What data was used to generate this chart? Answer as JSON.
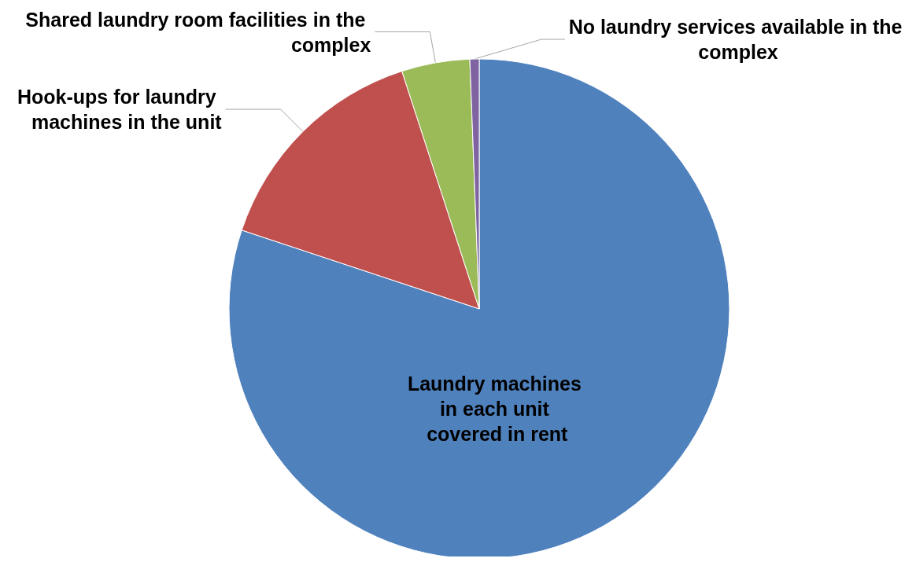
{
  "chart_data": {
    "type": "pie",
    "categories": [
      "Laundry machines in each unit covered in rent",
      "Hook-ups for laundry machines in the unit",
      "Shared laundry room facilities in the complex",
      "No laundry services available in the complex"
    ],
    "values": [
      80.1,
      14.9,
      4.4,
      0.6
    ],
    "colors": [
      "#4f81bd",
      "#c0504d",
      "#9bbb59",
      "#8064a2"
    ],
    "legend": false
  }
}
